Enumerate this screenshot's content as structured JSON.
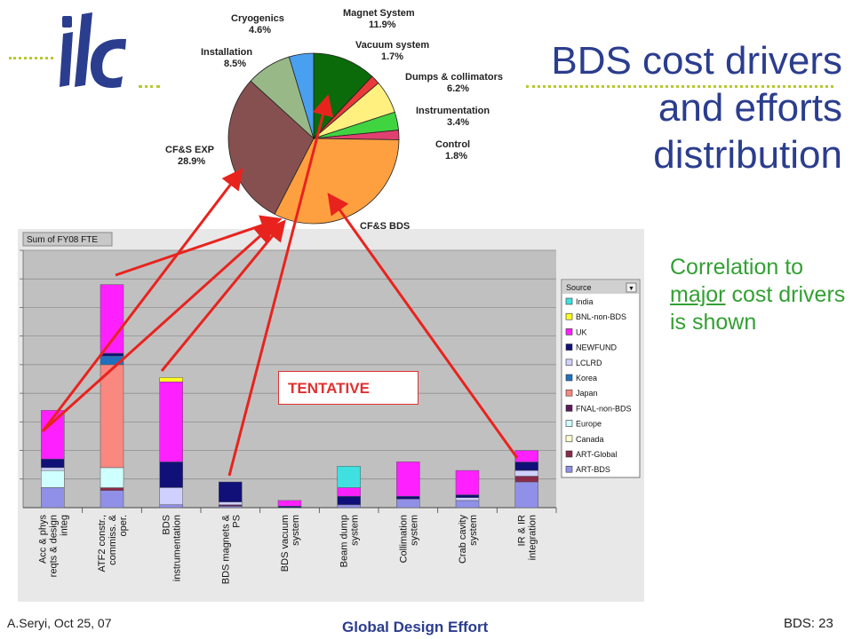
{
  "slide": {
    "title_lines": [
      "BDS cost drivers",
      "and efforts",
      "distribution"
    ],
    "logo_text": "ilc",
    "correlation_text": {
      "before": "Correlation to ",
      "underlined": "major",
      "after": " cost drivers is shown"
    },
    "tentative": "TENTATIVE",
    "footer_left": "A.Seryi, Oct 25, 07",
    "footer_center": "Global Design Effort",
    "footer_right": "BDS: 23",
    "accent_blue": "#2b3d8e",
    "accent_green": "#33a033",
    "arrow_color": "#e8231e"
  },
  "chart_data": [
    {
      "type": "pie",
      "slices": [
        {
          "label": "Magnet System",
          "value": 11.9,
          "color": "#0b6b0b"
        },
        {
          "label": "Vacuum system",
          "value": 1.7,
          "color": "#e83a3a"
        },
        {
          "label": "Dumps & collimators",
          "value": 6.2,
          "color": "#fff080"
        },
        {
          "label": "Instrumentation",
          "value": 3.4,
          "color": "#40d440"
        },
        {
          "label": "Control",
          "value": 1.8,
          "color": "#e04070"
        },
        {
          "label": "CF&S BDS",
          "value": 32.0,
          "color": "#ffa040"
        },
        {
          "label": "CF&S EXP",
          "value": 28.9,
          "color": "#875050"
        },
        {
          "label": "Installation",
          "value": 8.5,
          "color": "#98b888"
        },
        {
          "label": "Cryogenics",
          "value": 4.6,
          "color": "#4aa0f0"
        }
      ]
    },
    {
      "type": "bar",
      "stacked": true,
      "header": "Sum of FY08 FTE",
      "legend_title": "Source",
      "categories": [
        "Acc & phys reqts & design integ",
        "ATF2 constr., commiss. & oper.",
        "BDS instrumentation",
        "BDS magnets & PS",
        "BDS vacuum system",
        "Beam dump system",
        "Collimation system",
        "Crab cavity system",
        "IR & IR integration"
      ],
      "ylim": [
        0,
        9
      ],
      "grid": true,
      "series": [
        {
          "name": "ART-BDS",
          "color": "#9090e8",
          "values": [
            0.7,
            0.6,
            0.1,
            0.05,
            0,
            0.1,
            0.3,
            0.25,
            0.9
          ]
        },
        {
          "name": "ART-Global",
          "color": "#8a2a4a",
          "values": [
            0,
            0.1,
            0,
            0,
            0,
            0,
            0,
            0,
            0.2
          ]
        },
        {
          "name": "Canada",
          "color": "#ffffd0",
          "values": [
            0,
            0,
            0,
            0,
            0,
            0,
            0,
            0,
            0
          ]
        },
        {
          "name": "Europe",
          "color": "#d0ffff",
          "values": [
            0.6,
            0.7,
            0,
            0,
            0,
            0,
            0,
            0,
            0
          ]
        },
        {
          "name": "FNAL-non-BDS",
          "color": "#5a1a5a",
          "values": [
            0,
            0,
            0,
            0.05,
            0,
            0,
            0,
            0,
            0
          ]
        },
        {
          "name": "Japan",
          "color": "#f88880",
          "values": [
            0,
            3.6,
            0,
            0,
            0,
            0,
            0,
            0,
            0
          ]
        },
        {
          "name": "Korea",
          "color": "#2070c0",
          "values": [
            0,
            0.3,
            0,
            0,
            0,
            0,
            0,
            0,
            0
          ]
        },
        {
          "name": "LCLRD",
          "color": "#d0d0ff",
          "values": [
            0.1,
            0,
            0.6,
            0.1,
            0,
            0,
            0,
            0.1,
            0.2
          ]
        },
        {
          "name": "NEWFUND",
          "color": "#101078",
          "values": [
            0.3,
            0.1,
            0.9,
            0.7,
            0.05,
            0.3,
            0.1,
            0.1,
            0.3
          ]
        },
        {
          "name": "UK",
          "color": "#ff20ff",
          "values": [
            1.7,
            2.4,
            2.8,
            0,
            0.2,
            0.3,
            1.2,
            0.85,
            0.4
          ]
        },
        {
          "name": "BNL-non-BDS",
          "color": "#ffff20",
          "values": [
            0,
            0,
            0.15,
            0,
            0,
            0,
            0,
            0,
            0
          ]
        },
        {
          "name": "India",
          "color": "#40e0e0",
          "values": [
            0,
            0,
            0,
            0,
            0,
            0.75,
            0,
            0,
            0
          ]
        }
      ]
    }
  ]
}
